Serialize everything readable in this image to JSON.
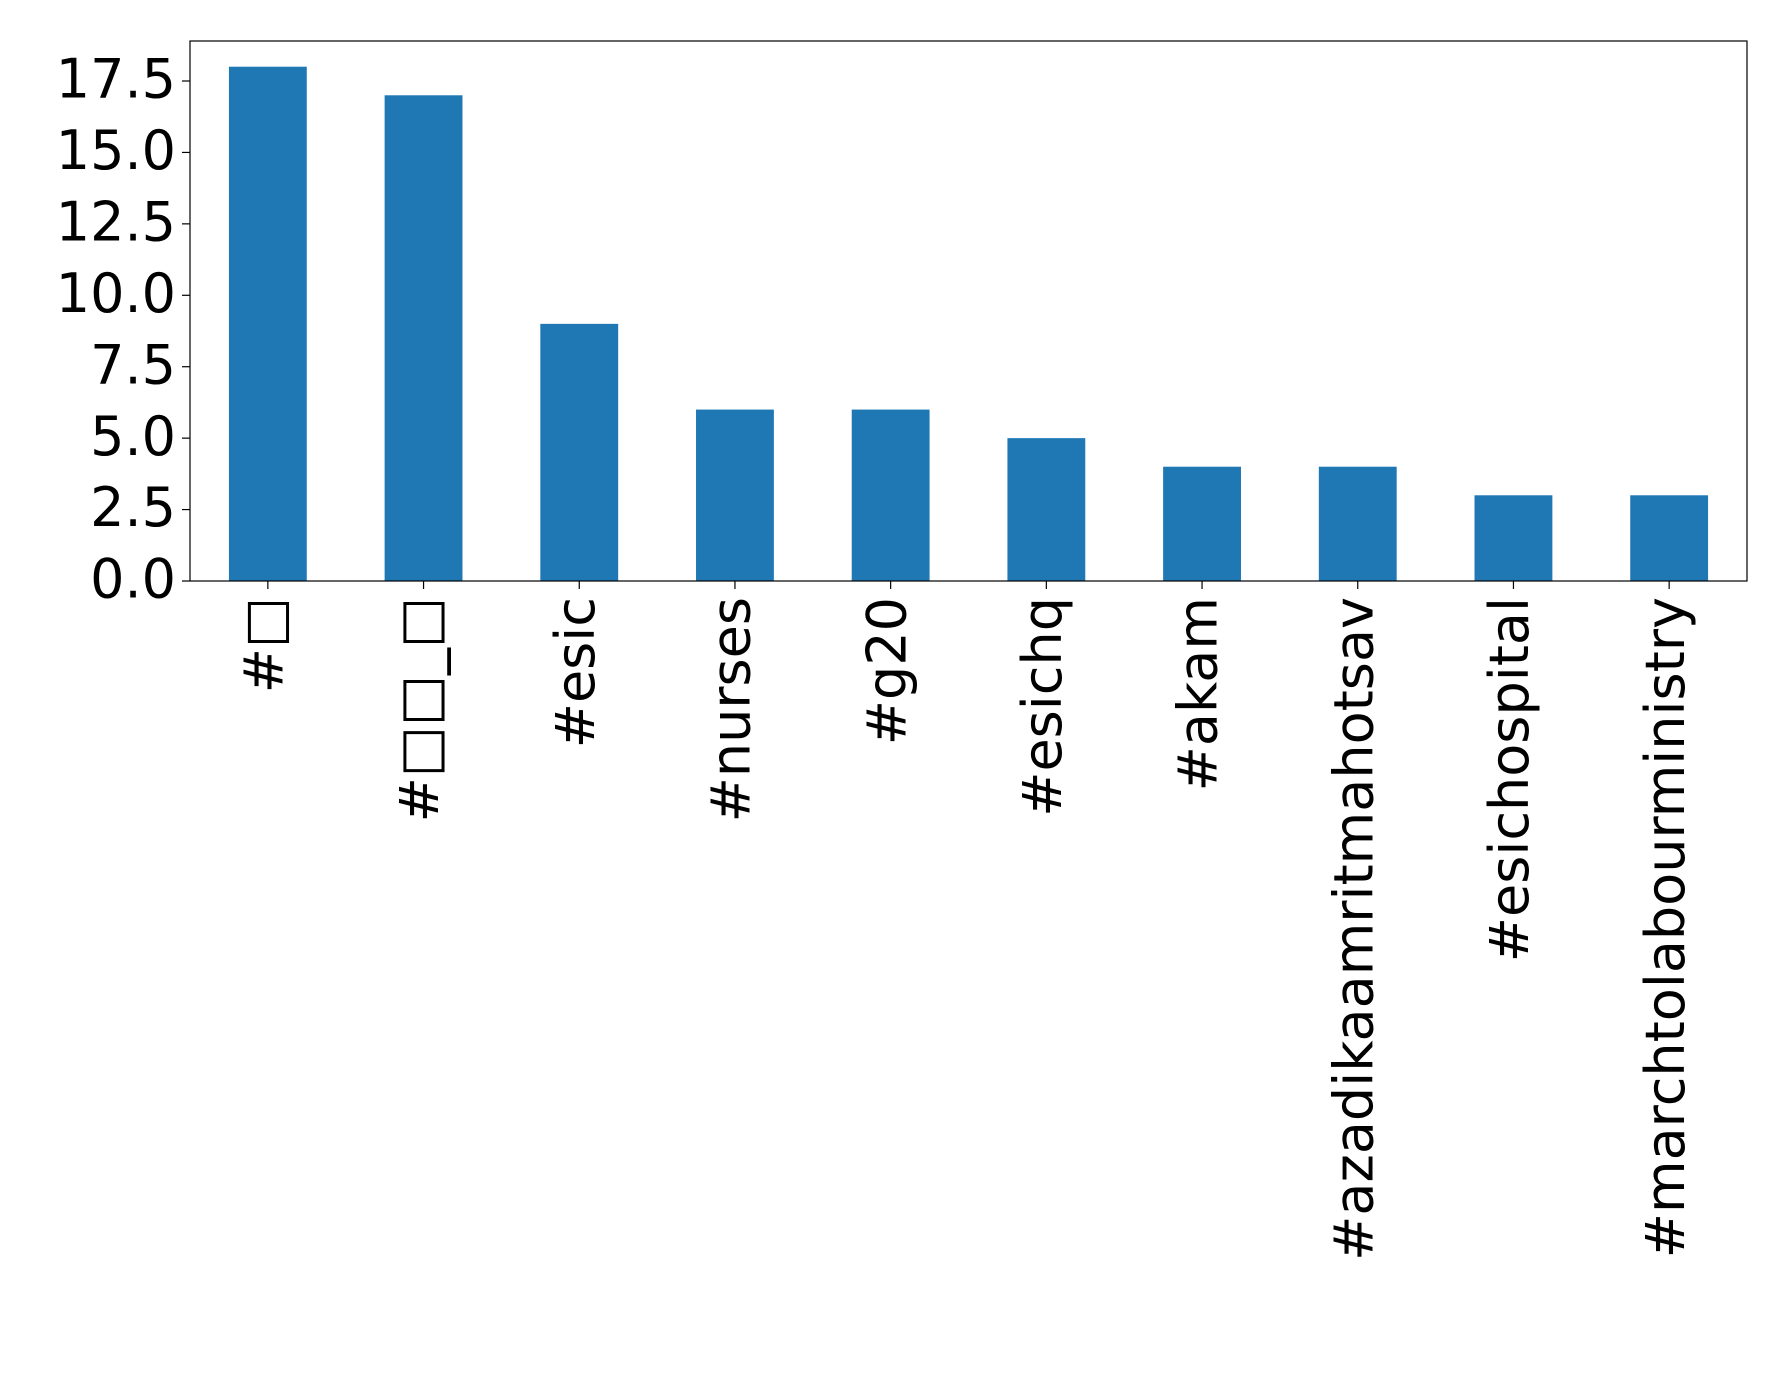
{
  "chart_data": {
    "type": "bar",
    "categories": [
      "#□",
      "#□□_□",
      "#esic",
      "#nurses",
      "#g20",
      "#esichq",
      "#akam",
      "#azadikaamritmahotsav",
      "#esichospital",
      "#marchtolabourministry"
    ],
    "values": [
      18,
      17,
      9,
      6,
      6,
      5,
      4,
      4,
      3,
      3
    ],
    "color": "#1f77b4",
    "ylim": [
      0,
      18.9
    ],
    "yticks": [
      {
        "value": 0,
        "label": "0.0"
      },
      2.5,
      {
        "value": 5,
        "label": "5.0"
      },
      7.5,
      {
        "value": 10,
        "label": "10.0"
      },
      12.5,
      {
        "value": 15,
        "label": "15.0"
      },
      17.5
    ],
    "grid": false
  }
}
